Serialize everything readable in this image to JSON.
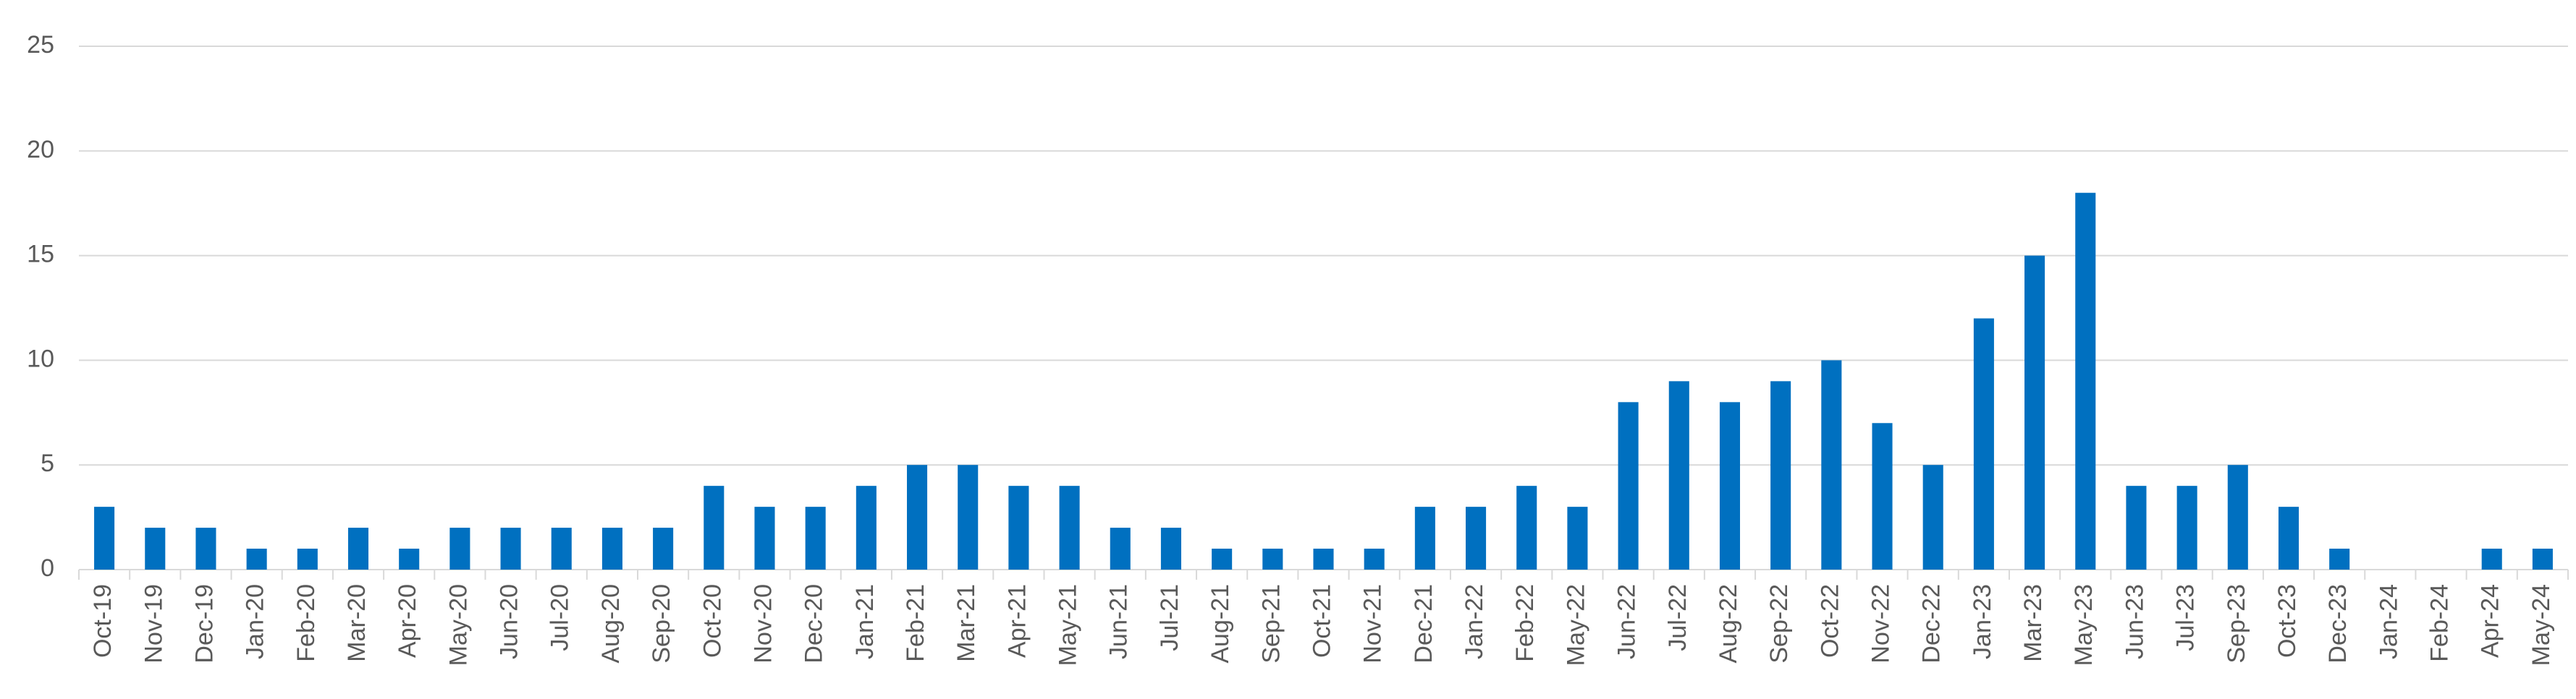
{
  "chart_data": {
    "type": "bar",
    "categories": [
      "Oct-19",
      "Nov-19",
      "Dec-19",
      "Jan-20",
      "Feb-20",
      "Mar-20",
      "Apr-20",
      "May-20",
      "Jun-20",
      "Jul-20",
      "Aug-20",
      "Sep-20",
      "Oct-20",
      "Nov-20",
      "Dec-20",
      "Jan-21",
      "Feb-21",
      "Mar-21",
      "Apr-21",
      "May-21",
      "Jun-21",
      "Jul-21",
      "Aug-21",
      "Sep-21",
      "Oct-21",
      "Nov-21",
      "Dec-21",
      "Jan-22",
      "Feb-22",
      "May-22",
      "Jun-22",
      "Jul-22",
      "Aug-22",
      "Sep-22",
      "Oct-22",
      "Nov-22",
      "Dec-22",
      "Jan-23",
      "Mar-23",
      "May-23",
      "Jun-23",
      "Jul-23",
      "Sep-23",
      "Oct-23",
      "Dec-23",
      "Jan-24",
      "Feb-24",
      "Apr-24",
      "May-24"
    ],
    "values": [
      3,
      2,
      2,
      1,
      1,
      2,
      1,
      2,
      2,
      2,
      2,
      2,
      4,
      3,
      3,
      4,
      5,
      5,
      4,
      4,
      2,
      2,
      1,
      1,
      1,
      1,
      3,
      3,
      4,
      3,
      8,
      9,
      8,
      9,
      10,
      7,
      5,
      12,
      15,
      18,
      4,
      4,
      5,
      3,
      1,
      0,
      0,
      1,
      1
    ],
    "color": "#0070c0",
    "ylim": [
      0,
      25
    ],
    "yticks": [
      0,
      5,
      10,
      15,
      20,
      25
    ],
    "grid": true
  }
}
